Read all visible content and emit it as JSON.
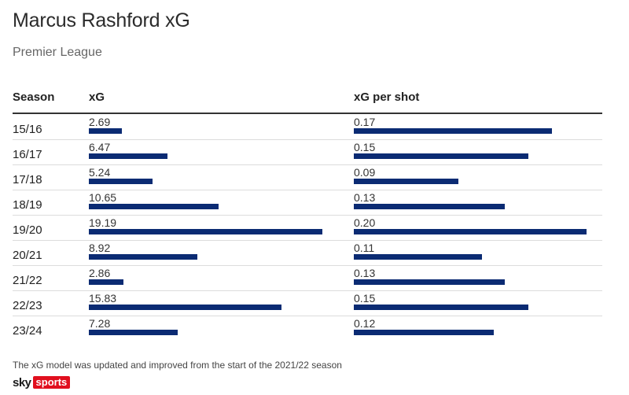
{
  "title": "Marcus Rashford xG",
  "subtitle": "Premier League",
  "columns": {
    "season": "Season",
    "xg": "xG",
    "xg_per_shot": "xG per shot"
  },
  "chart_data": {
    "type": "bar",
    "title": "Marcus Rashford xG",
    "subtitle": "Premier League",
    "categories": [
      "15/16",
      "16/17",
      "17/18",
      "18/19",
      "19/20",
      "20/21",
      "21/22",
      "22/23",
      "23/24"
    ],
    "series": [
      {
        "name": "xG",
        "values": [
          2.69,
          6.47,
          5.24,
          10.65,
          19.19,
          8.92,
          2.86,
          15.83,
          7.28
        ],
        "labels": [
          "2.69",
          "6.47",
          "5.24",
          "10.65",
          "19.19",
          "8.92",
          "2.86",
          "15.83",
          "7.28"
        ],
        "max": 19.19
      },
      {
        "name": "xG per shot",
        "values": [
          0.17,
          0.15,
          0.09,
          0.13,
          0.2,
          0.11,
          0.13,
          0.15,
          0.12
        ],
        "labels": [
          "0.17",
          "0.15",
          "0.09",
          "0.13",
          "0.20",
          "0.11",
          "0.13",
          "0.15",
          "0.12"
        ],
        "max": 0.2
      }
    ],
    "bar_color": "#0b2b73",
    "orientation": "horizontal"
  },
  "footnote": "The xG model was updated and improved from the start of the 2021/22 season",
  "logo": {
    "sky": "sky",
    "sports": "sports"
  }
}
